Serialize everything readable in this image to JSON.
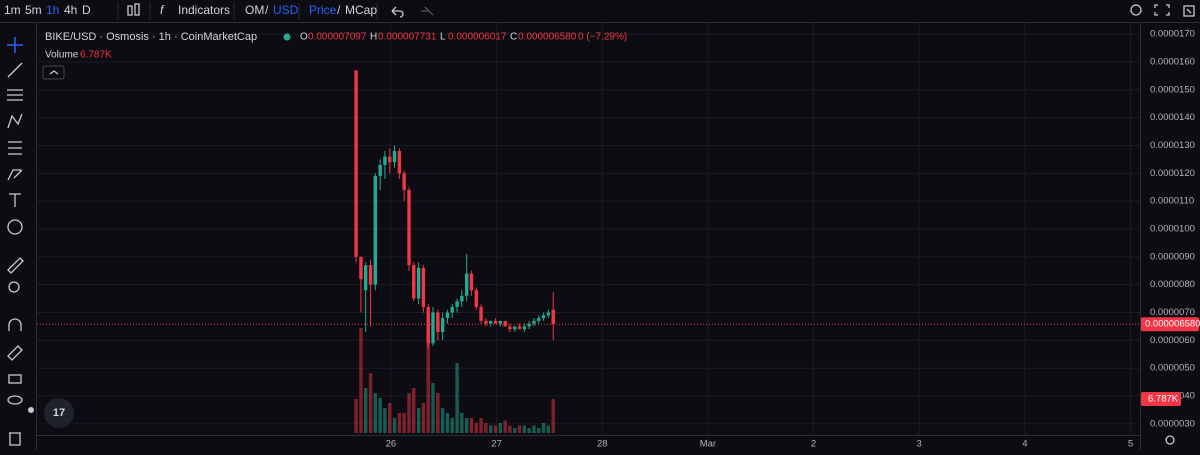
{
  "toolbar": {
    "intervals": [
      "1m",
      "5m",
      "1h",
      "4h",
      "D"
    ],
    "active_interval": 2,
    "indicators": "Indicators",
    "pair": [
      "OM",
      "USD"
    ],
    "modes": [
      "Price",
      "MCap"
    ],
    "separator": "/"
  },
  "chart_data": {
    "type": "candlestick",
    "title": "BIKE/USD · Osmosis · 1h · CoinMarketCap",
    "ohlc_legend": {
      "o_key": "O",
      "o": "0.000007097",
      "h_key": "H",
      "h": "0.000007731",
      "l_key": "L",
      "l": "0.000006017",
      "c_key": "C",
      "c": "0.000006580",
      "change": "0 (−7.29%)"
    },
    "volume_title": "Volume",
    "x": [
      25.67,
      25.716,
      25.761,
      25.807,
      25.852,
      25.898,
      25.943,
      25.989,
      26.034,
      26.08,
      26.125,
      26.171,
      26.216,
      26.262,
      26.307,
      26.353,
      26.398,
      26.444,
      26.489,
      26.535,
      26.58,
      26.626,
      26.671,
      26.717,
      26.762,
      26.808,
      26.853,
      26.899,
      26.944,
      26.99,
      27.035,
      27.081,
      27.126,
      27.172,
      27.217,
      27.263,
      27.308,
      27.354,
      27.399,
      27.445,
      27.49,
      27.536
    ],
    "series": [
      {
        "open": [
          1.57e-05,
          9e-06,
          7.8e-06,
          8.7e-06,
          8e-06,
          1.19e-05,
          1.23e-05,
          1.26e-05,
          1.24e-05,
          1.28e-05,
          1.2e-05,
          1.14e-05,
          8.7e-06,
          7.5e-06,
          8.6e-06,
          7.2e-06,
          5.9e-06,
          7e-06,
          6.3e-06,
          6.8e-06,
          7e-06,
          7.2e-06,
          7.4e-06,
          7.6e-06,
          8.4e-06,
          7.8e-06,
          7.2e-06,
          6.7e-06,
          6.6e-06,
          6.7e-06,
          6.6e-06,
          6.7e-06,
          6.5e-06,
          6.4e-06,
          6.5e-06,
          6.4e-06,
          6.5e-06,
          6.6e-06,
          6.7e-06,
          6.8e-06,
          6.9e-06,
          7.097e-06
        ],
        "high": [
          1.57e-05,
          9e-06,
          8.8e-06,
          8.9e-06,
          1.2e-05,
          1.25e-05,
          1.28e-05,
          1.29e-05,
          1.3e-05,
          1.29e-05,
          1.21e-05,
          1.15e-05,
          8.8e-06,
          8.8e-06,
          8.7e-06,
          7.3e-06,
          7.2e-06,
          7.1e-06,
          7e-06,
          7.1e-06,
          7.3e-06,
          7.5e-06,
          7.8e-06,
          9.1e-06,
          8.5e-06,
          7.9e-06,
          7.3e-06,
          6.8e-06,
          6.7e-06,
          6.8e-06,
          6.7e-06,
          6.7e-06,
          6.6e-06,
          6.5e-06,
          6.6e-06,
          6.6e-06,
          6.7e-06,
          6.8e-06,
          6.9e-06,
          7e-06,
          7.1e-06,
          7.731e-06
        ],
        "low": [
          8.8e-06,
          7e-06,
          6.3e-06,
          6.5e-06,
          7.8e-06,
          1.14e-05,
          1.18e-05,
          1.2e-05,
          1.22e-05,
          1.18e-05,
          1.1e-05,
          8.5e-06,
          7.4e-06,
          7.3e-06,
          7e-06,
          5.7e-06,
          5.8e-06,
          6e-06,
          6e-06,
          6.6e-06,
          6.8e-06,
          7e-06,
          7.2e-06,
          7.4e-06,
          7.6e-06,
          7.1e-06,
          6.6e-06,
          6.5e-06,
          6.5e-06,
          6.6e-06,
          6.5e-06,
          6.5e-06,
          6.3e-06,
          6.3e-06,
          6.4e-06,
          6.3e-06,
          6.4e-06,
          6.5e-06,
          6.6e-06,
          6.7e-06,
          6.8e-06,
          6.017e-06
        ],
        "close": [
          9e-06,
          8.2e-06,
          8.7e-06,
          8e-06,
          1.19e-05,
          1.23e-05,
          1.26e-05,
          1.24e-05,
          1.28e-05,
          1.2e-05,
          1.14e-05,
          8.7e-06,
          7.5e-06,
          8.6e-06,
          7.2e-06,
          5.9e-06,
          7e-06,
          6.3e-06,
          6.8e-06,
          7e-06,
          7.2e-06,
          7.4e-06,
          7.6e-06,
          8.4e-06,
          7.8e-06,
          7.2e-06,
          6.7e-06,
          6.6e-06,
          6.7e-06,
          6.6e-06,
          6.7e-06,
          6.5e-06,
          6.4e-06,
          6.5e-06,
          6.4e-06,
          6.5e-06,
          6.6e-06,
          6.7e-06,
          6.8e-06,
          6.9e-06,
          7e-06,
          6.58e-06
        ],
        "volume": [
          6800,
          21000,
          9000,
          12000,
          8000,
          7000,
          5000,
          6000,
          3000,
          4000,
          4000,
          8000,
          9000,
          5000,
          6000,
          21000,
          10000,
          8000,
          5000,
          4000,
          3000,
          14000,
          4000,
          3000,
          3000,
          2000,
          3000,
          2000,
          1500,
          1500,
          2000,
          2500,
          1500,
          1000,
          1500,
          1500,
          1000,
          1500,
          1000,
          2000,
          1500,
          6787
        ],
        "volume_last_label": "6.787K"
      }
    ],
    "up_color": "#22ab94",
    "down_color": "#f23645",
    "last_price": {
      "value": 6.58e-06,
      "label": "0.000006580"
    },
    "xlim": [
      22.65,
      33.09
    ],
    "xticks": [
      26,
      27,
      28,
      {
        "value": 29,
        "label": "Mar"
      },
      {
        "value": 30,
        "label": "2"
      },
      {
        "value": 31,
        "label": "3"
      },
      {
        "value": 32,
        "label": "4"
      },
      {
        "value": 33,
        "label": "5"
      }
    ],
    "ylim": [
      2.6e-06,
      1.74e-05
    ],
    "yticks": [
      {
        "value": 3e-06,
        "label": "0.0000030"
      },
      {
        "value": 4e-06,
        "label": "0.0000040"
      },
      {
        "value": 5e-06,
        "label": "0.0000050"
      },
      {
        "value": 6e-06,
        "label": "0.0000060"
      },
      {
        "value": 7e-06,
        "label": "0.0000070"
      },
      {
        "value": 8e-06,
        "label": "0.0000080"
      },
      {
        "value": 9e-06,
        "label": "0.0000090"
      },
      {
        "value": 1e-05,
        "label": "0.0000100"
      },
      {
        "value": 1.1e-05,
        "label": "0.0000110"
      },
      {
        "value": 1.2e-05,
        "label": "0.0000120"
      },
      {
        "value": 1.3e-05,
        "label": "0.0000130"
      },
      {
        "value": 1.4e-05,
        "label": "0.0000140"
      },
      {
        "value": 1.5e-05,
        "label": "0.0000150"
      },
      {
        "value": 1.6e-05,
        "label": "0.0000160"
      },
      {
        "value": 1.7e-05,
        "label": "0.0000170"
      }
    ],
    "grid": true
  }
}
